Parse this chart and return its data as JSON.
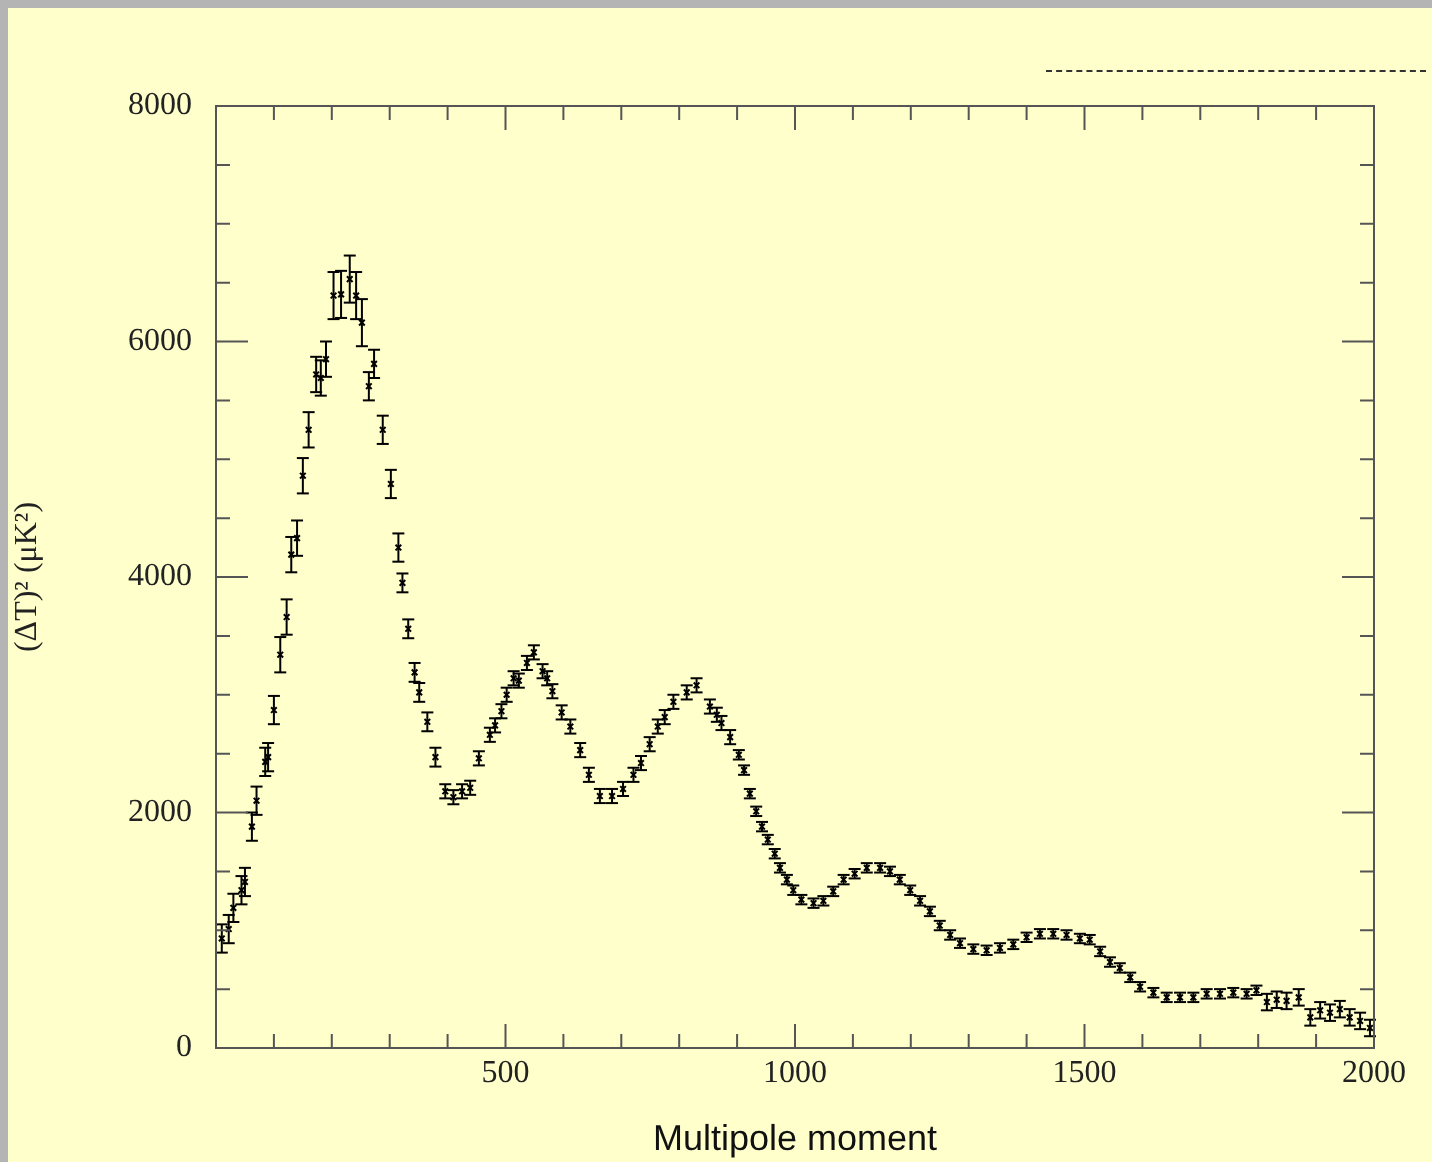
{
  "chart_data": {
    "type": "scatter",
    "xlabel": "Multipole moment",
    "ylabel": "(ΔT)² (μK²)",
    "xlim": [
      0,
      2000
    ],
    "xticks": [
      {
        "value": 100,
        "label": null
      },
      {
        "value": 200,
        "label": null
      },
      {
        "value": 300,
        "label": null
      },
      {
        "value": 400,
        "label": null
      },
      500,
      {
        "value": 600,
        "label": null
      },
      {
        "value": 700,
        "label": null
      },
      {
        "value": 800,
        "label": null
      },
      {
        "value": 900,
        "label": null
      },
      1000,
      {
        "value": 1100,
        "label": null
      },
      {
        "value": 1200,
        "label": null
      },
      {
        "value": 1300,
        "label": null
      },
      {
        "value": 1400,
        "label": null
      },
      1500,
      {
        "value": 1600,
        "label": null
      },
      {
        "value": 1700,
        "label": null
      },
      {
        "value": 1800,
        "label": null
      },
      {
        "value": 1900,
        "label": null
      },
      2000
    ],
    "ylim": [
      0,
      8000
    ],
    "yticks": [
      0,
      {
        "value": 500,
        "label": null
      },
      {
        "value": 1000,
        "label": null
      },
      {
        "value": 1500,
        "label": null
      },
      2000,
      {
        "value": 2500,
        "label": null
      },
      {
        "value": 3000,
        "label": null
      },
      {
        "value": 3500,
        "label": null
      },
      4000,
      {
        "value": 4500,
        "label": null
      },
      {
        "value": 5000,
        "label": null
      },
      {
        "value": 5500,
        "label": null
      },
      6000,
      {
        "value": 6500,
        "label": null
      },
      {
        "value": 7000,
        "label": null
      },
      {
        "value": 7500,
        "label": null
      },
      8000
    ],
    "grid": false,
    "legend": false,
    "marker": "cross",
    "series": [
      {
        "color": "#000000",
        "x": [
          10,
          22,
          30,
          44,
          50,
          62,
          70,
          85,
          90,
          100,
          111,
          122,
          130,
          140,
          150,
          160,
          173,
          181,
          190,
          203,
          216,
          231,
          242,
          252,
          264,
          273,
          288,
          302,
          315,
          322,
          332,
          343,
          351,
          365,
          379,
          396,
          410,
          425,
          439,
          454,
          473,
          482,
          493,
          502,
          514,
          523,
          537,
          549,
          564,
          572,
          581,
          597,
          612,
          629,
          644,
          663,
          684,
          703,
          721,
          734,
          749,
          763,
          775,
          790,
          813,
          830,
          853,
          865,
          873,
          888,
          903,
          912,
          922,
          933,
          943,
          953,
          965,
          974,
          986,
          997,
          1011,
          1032,
          1049,
          1066,
          1084,
          1103,
          1124,
          1147,
          1164,
          1181,
          1199,
          1216,
          1233,
          1250,
          1268,
          1285,
          1308,
          1331,
          1354,
          1377,
          1400,
          1423,
          1446,
          1469,
          1492,
          1509,
          1527,
          1544,
          1561,
          1579,
          1596,
          1619,
          1642,
          1665,
          1688,
          1711,
          1734,
          1757,
          1780,
          1797,
          1815,
          1832,
          1849,
          1870,
          1890,
          1907,
          1924,
          1941,
          1958,
          1976,
          1993
        ],
        "values": [
          930,
          1010,
          1190,
          1340,
          1410,
          1880,
          2100,
          2430,
          2470,
          2870,
          3340,
          3660,
          4190,
          4330,
          4860,
          5250,
          5720,
          5690,
          5850,
          6390,
          6400,
          6530,
          6390,
          6160,
          5620,
          5810,
          5250,
          4790,
          4250,
          3950,
          3560,
          3190,
          3020,
          2770,
          2470,
          2180,
          2130,
          2180,
          2210,
          2460,
          2660,
          2740,
          2860,
          3000,
          3140,
          3120,
          3270,
          3360,
          3200,
          3140,
          3030,
          2850,
          2730,
          2530,
          2320,
          2140,
          2140,
          2200,
          2320,
          2420,
          2580,
          2730,
          2810,
          2940,
          3020,
          3080,
          2900,
          2830,
          2760,
          2640,
          2490,
          2360,
          2160,
          2010,
          1880,
          1770,
          1650,
          1530,
          1430,
          1340,
          1260,
          1230,
          1250,
          1330,
          1430,
          1480,
          1530,
          1530,
          1500,
          1430,
          1340,
          1250,
          1160,
          1040,
          960,
          890,
          840,
          830,
          850,
          880,
          940,
          970,
          970,
          960,
          930,
          920,
          820,
          730,
          680,
          600,
          520,
          470,
          430,
          430,
          430,
          460,
          460,
          470,
          460,
          490,
          390,
          410,
          400,
          430,
          260,
          320,
          300,
          330,
          260,
          230,
          170
        ],
        "errors": [
          120,
          120,
          120,
          120,
          120,
          120,
          120,
          120,
          120,
          120,
          150,
          150,
          150,
          150,
          150,
          150,
          150,
          150,
          150,
          200,
          200,
          200,
          200,
          200,
          120,
          120,
          120,
          120,
          120,
          80,
          80,
          80,
          80,
          80,
          80,
          60,
          60,
          60,
          60,
          60,
          60,
          60,
          60,
          60,
          60,
          60,
          60,
          60,
          60,
          60,
          60,
          60,
          60,
          60,
          60,
          60,
          60,
          60,
          60,
          60,
          60,
          60,
          60,
          60,
          60,
          60,
          60,
          60,
          60,
          60,
          40,
          40,
          40,
          40,
          40,
          40,
          40,
          40,
          40,
          40,
          40,
          40,
          40,
          40,
          40,
          40,
          40,
          40,
          40,
          40,
          40,
          40,
          40,
          40,
          40,
          40,
          40,
          40,
          40,
          40,
          40,
          40,
          40,
          40,
          40,
          40,
          40,
          40,
          40,
          40,
          40,
          40,
          40,
          40,
          40,
          40,
          40,
          40,
          40,
          40,
          70,
          70,
          70,
          70,
          70,
          70,
          70,
          70,
          70,
          70,
          70
        ]
      }
    ]
  }
}
